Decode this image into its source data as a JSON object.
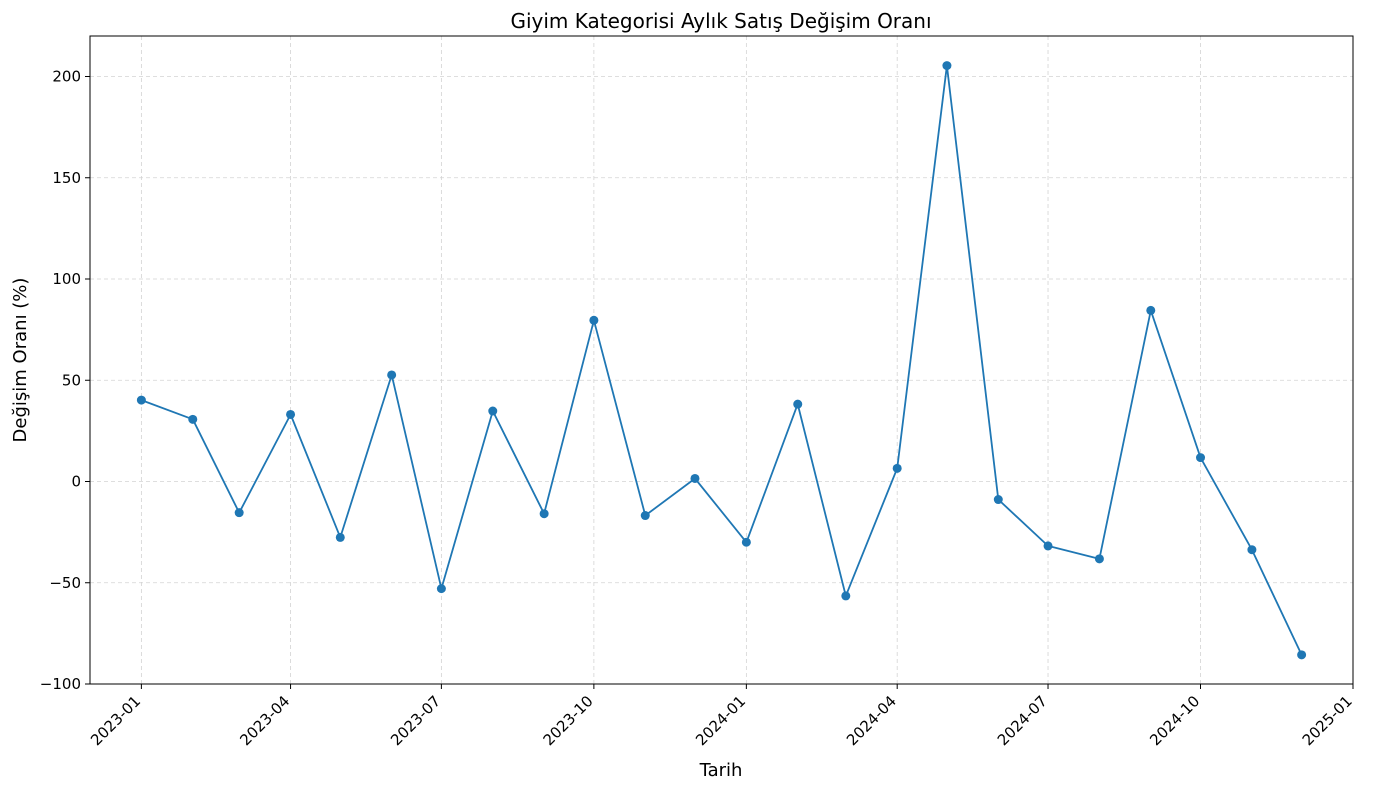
{
  "chart_data": {
    "type": "line",
    "title": "Giyim Kategorisi Aylık Satış Değişim Oranı",
    "xlabel": "Tarih",
    "ylabel": "Değişim Oranı (%)",
    "ylim": [
      -100,
      220
    ],
    "xlim": [
      "2022-12-01",
      "2025-01-01"
    ],
    "grid": true,
    "line_color": "#1f77b4",
    "x_ticks": [
      "2023-01",
      "2023-04",
      "2023-07",
      "2023-10",
      "2024-01",
      "2024-04",
      "2024-07",
      "2024-10",
      "2025-01"
    ],
    "y_ticks": [
      -100,
      -50,
      0,
      50,
      100,
      150,
      200
    ],
    "y_tick_labels": [
      "−100",
      "−50",
      "0",
      "50",
      "100",
      "150",
      "200"
    ],
    "series": [
      {
        "x": [
          "2023-01-01",
          "2023-02-01",
          "2023-03-01",
          "2023-04-01",
          "2023-05-01",
          "2023-06-01",
          "2023-07-01",
          "2023-08-01",
          "2023-09-01",
          "2023-10-01",
          "2023-11-01",
          "2023-12-01",
          "2024-01-01",
          "2024-02-01",
          "2024-03-01",
          "2024-04-01",
          "2024-05-01",
          "2024-06-01",
          "2024-07-01",
          "2024-08-01",
          "2024-09-01",
          "2024-10-01",
          "2024-11-01",
          "2024-12-01"
        ],
        "values": [
          40.2,
          30.7,
          -15.4,
          33.1,
          -27.6,
          52.6,
          -52.9,
          34.8,
          -15.9,
          79.6,
          -16.8,
          1.5,
          -30.0,
          38.2,
          -56.5,
          6.5,
          205.4,
          -8.9,
          -31.8,
          -38.2,
          84.5,
          11.8,
          -33.7,
          -85.6
        ]
      }
    ]
  }
}
